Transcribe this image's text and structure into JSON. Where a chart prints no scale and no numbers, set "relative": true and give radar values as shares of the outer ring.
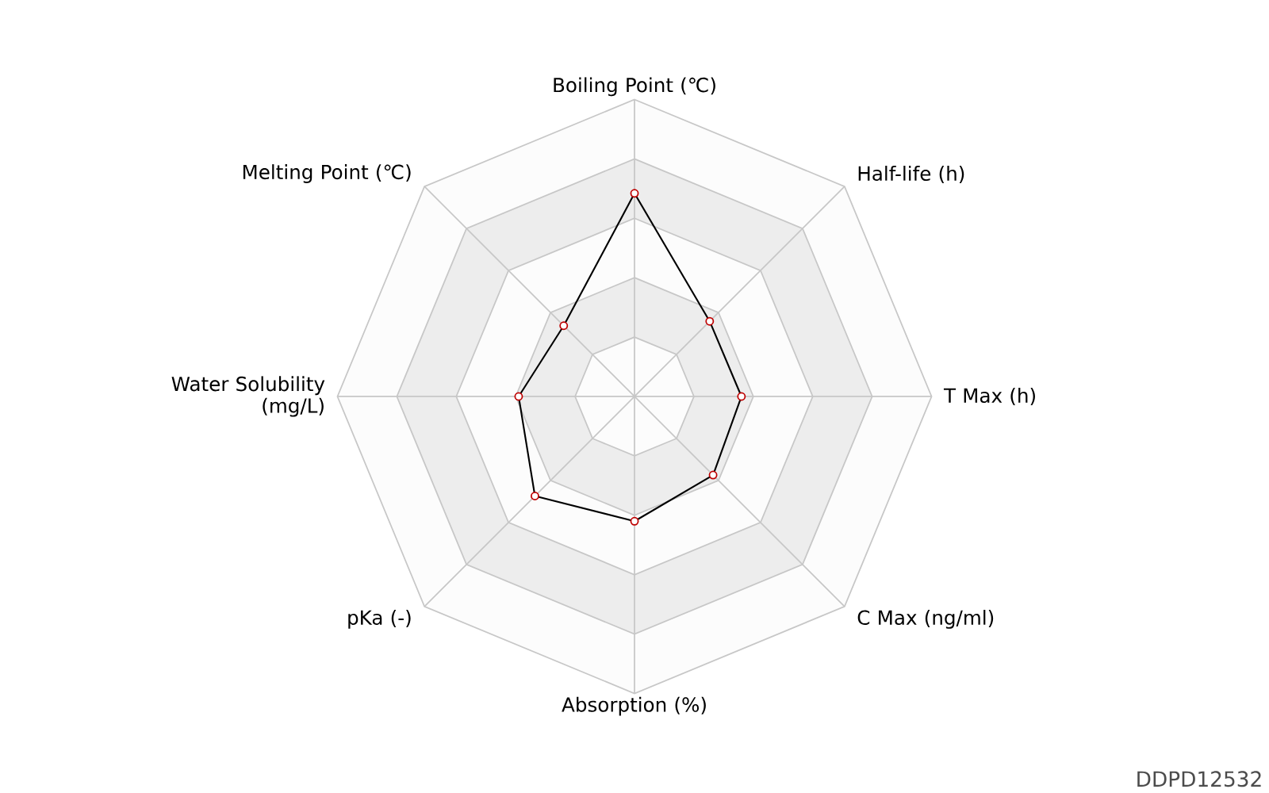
{
  "chart_data": {
    "type": "radar",
    "relative": true,
    "marker": "circle",
    "categories": [
      "Boiling Point (℃)",
      "Half-life (h)",
      "T Max (h)",
      "C Max (ng/ml)",
      "Absorption (%)",
      "pKa (-)",
      "Water Solubility (mg/L)",
      "Melting Point (℃)"
    ],
    "series": [
      {
        "color": "#000000",
        "values": [
          0.684,
          0.358,
          0.36,
          0.374,
          0.42,
          0.474,
          0.39,
          0.337
        ]
      }
    ],
    "annotations": [
      "DDPD12532"
    ]
  }
}
